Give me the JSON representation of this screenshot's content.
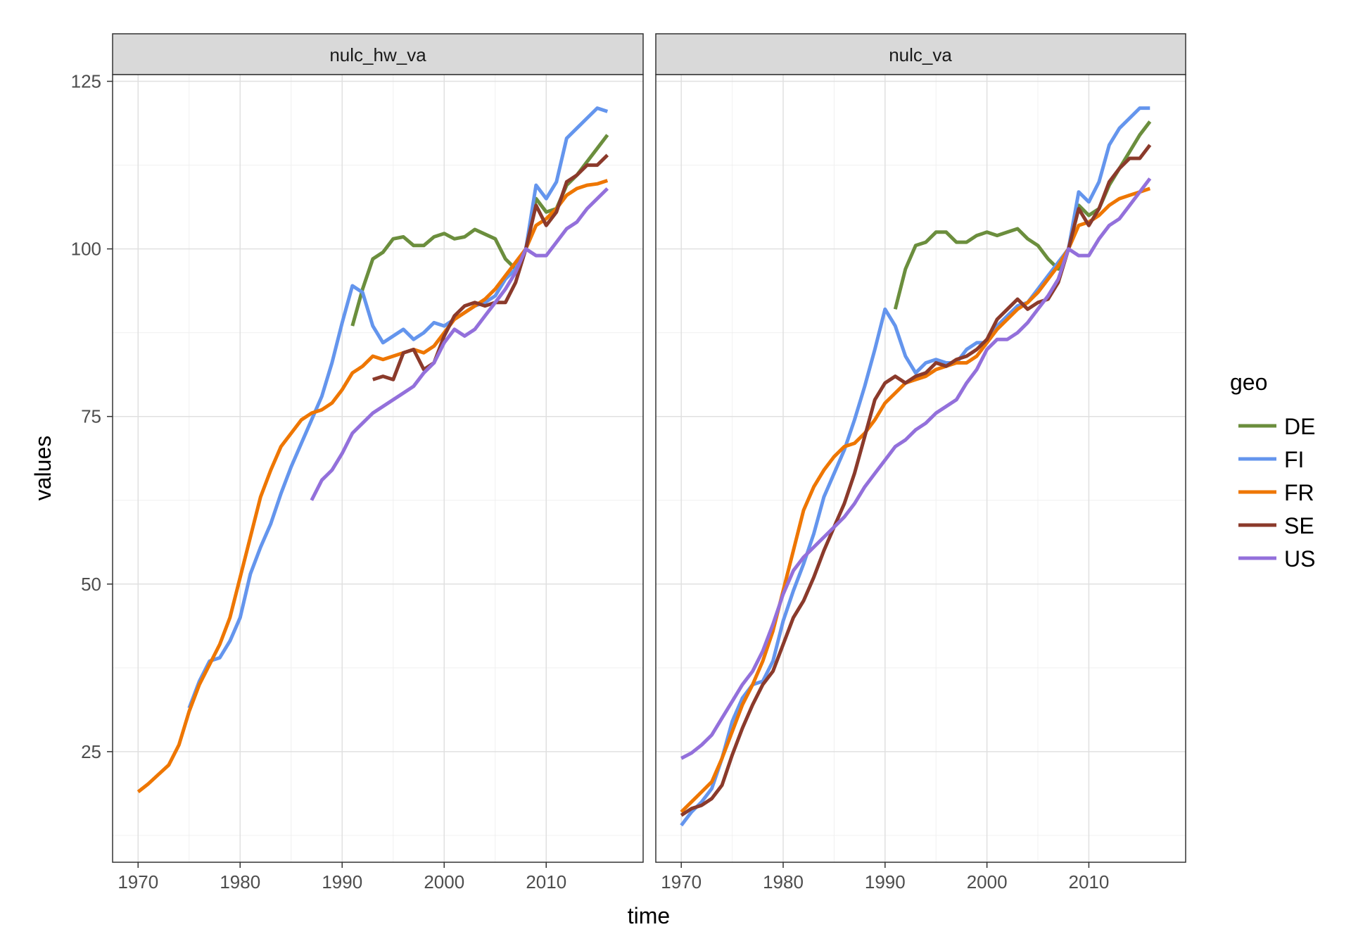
{
  "chart_data": {
    "type": "line",
    "xlabel": "time",
    "ylabel": "values",
    "xlim": [
      1967.5,
      2019.5
    ],
    "ylim": [
      8.5,
      126
    ],
    "xticks": [
      1970,
      1980,
      1990,
      2000,
      2010
    ],
    "yticks": [
      25,
      50,
      75,
      100,
      125
    ],
    "grid": true,
    "legend": {
      "title": "geo",
      "position": "right"
    },
    "colors": {
      "DE": "#6b8e3d",
      "FI": "#6495ed",
      "FR": "#ee7600",
      "SE": "#8b3a2b",
      "US": "#9370db"
    },
    "series_names": [
      "DE",
      "FI",
      "FR",
      "SE",
      "US"
    ],
    "panels": [
      {
        "label": "nulc_hw_va",
        "series": [
          {
            "name": "DE",
            "x": [
              1991,
              1992,
              1993,
              1994,
              1995,
              1996,
              1997,
              1998,
              1999,
              2000,
              2001,
              2002,
              2003,
              2004,
              2005,
              2006,
              2007,
              2008,
              2009,
              2010,
              2011,
              2012,
              2013,
              2014,
              2015,
              2016
            ],
            "values": [
              88.5,
              94,
              98.5,
              99.5,
              101.5,
              101.8,
              100.5,
              100.5,
              101.8,
              102.3,
              101.5,
              101.8,
              102.9,
              102.2,
              101.5,
              98.5,
              97,
              100,
              107.5,
              105.5,
              106,
              109.5,
              111,
              113,
              115,
              117
            ]
          },
          {
            "name": "FI",
            "x": [
              1975,
              1976,
              1977,
              1978,
              1979,
              1980,
              1981,
              1982,
              1983,
              1984,
              1985,
              1986,
              1987,
              1988,
              1989,
              1990,
              1991,
              1992,
              1993,
              1994,
              1995,
              1996,
              1997,
              1998,
              1999,
              2000,
              2001,
              2002,
              2003,
              2004,
              2005,
              2006,
              2007,
              2008,
              2009,
              2010,
              2011,
              2012,
              2013,
              2014,
              2015,
              2016
            ],
            "values": [
              31.5,
              35.5,
              38.5,
              39,
              41.5,
              45,
              51.5,
              55.5,
              59,
              63.5,
              67.5,
              71,
              74.5,
              78,
              83,
              89,
              94.5,
              93.5,
              88.5,
              86,
              87,
              88,
              86.5,
              87.5,
              89,
              88.5,
              89.5,
              90.5,
              91.5,
              92,
              93,
              95.5,
              97,
              100,
              109.5,
              107.5,
              110,
              116.5,
              118,
              119.5,
              121,
              120.5
            ]
          },
          {
            "name": "FR",
            "x": [
              1970,
              1971,
              1972,
              1973,
              1974,
              1975,
              1976,
              1977,
              1978,
              1979,
              1980,
              1981,
              1982,
              1983,
              1984,
              1985,
              1986,
              1987,
              1988,
              1989,
              1990,
              1991,
              1992,
              1993,
              1994,
              1995,
              1996,
              1997,
              1998,
              1999,
              2000,
              2001,
              2002,
              2003,
              2004,
              2005,
              2006,
              2007,
              2008,
              2009,
              2010,
              2011,
              2012,
              2013,
              2014,
              2015,
              2016
            ],
            "values": [
              19,
              20.2,
              21.6,
              23,
              26,
              31,
              35,
              38,
              41,
              45,
              51,
              57,
              63,
              67,
              70.5,
              72.5,
              74.5,
              75.5,
              76,
              77,
              79,
              81.5,
              82.5,
              84,
              83.5,
              84,
              84.5,
              85,
              84.5,
              85.5,
              87.5,
              89.5,
              90.5,
              91.5,
              92.5,
              94,
              96,
              98,
              100,
              103.5,
              104.5,
              106,
              108,
              109,
              109.5,
              109.7,
              110.2
            ]
          },
          {
            "name": "SE",
            "x": [
              1993,
              1994,
              1995,
              1996,
              1997,
              1998,
              1999,
              2000,
              2001,
              2002,
              2003,
              2004,
              2005,
              2006,
              2007,
              2008,
              2009,
              2010,
              2011,
              2012,
              2013,
              2014,
              2015,
              2016
            ],
            "values": [
              80.5,
              81,
              80.5,
              84.5,
              85,
              82,
              83,
              87,
              90,
              91.5,
              92,
              91.5,
              92,
              92,
              95,
              100,
              106.5,
              103.5,
              105.5,
              110,
              111,
              112.5,
              112.5,
              114
            ]
          },
          {
            "name": "US",
            "x": [
              1987,
              1988,
              1989,
              1990,
              1991,
              1992,
              1993,
              1994,
              1995,
              1996,
              1997,
              1998,
              1999,
              2000,
              2001,
              2002,
              2003,
              2004,
              2005,
              2006,
              2007,
              2008,
              2009,
              2010,
              2011,
              2012,
              2013,
              2014,
              2015,
              2016
            ],
            "values": [
              62.5,
              65.5,
              67,
              69.5,
              72.5,
              74,
              75.5,
              76.5,
              77.5,
              78.5,
              79.5,
              81.5,
              83,
              86,
              88,
              87,
              88,
              90,
              92,
              94,
              96.5,
              100,
              99,
              99,
              101,
              103,
              104,
              106,
              107.5,
              109
            ]
          }
        ]
      },
      {
        "label": "nulc_va",
        "series": [
          {
            "name": "DE",
            "x": [
              1991,
              1992,
              1993,
              1994,
              1995,
              1996,
              1997,
              1998,
              1999,
              2000,
              2001,
              2002,
              2003,
              2004,
              2005,
              2006,
              2007,
              2008,
              2009,
              2010,
              2011,
              2012,
              2013,
              2014,
              2015,
              2016
            ],
            "values": [
              91,
              97,
              100.5,
              101,
              102.5,
              102.5,
              101,
              101,
              102,
              102.5,
              102,
              102.5,
              103,
              101.5,
              100.5,
              98.5,
              97,
              100,
              106.5,
              105,
              106,
              109.5,
              112,
              114.5,
              117,
              119
            ]
          },
          {
            "name": "FI",
            "x": [
              1970,
              1971,
              1972,
              1973,
              1974,
              1975,
              1976,
              1977,
              1978,
              1979,
              1980,
              1981,
              1982,
              1983,
              1984,
              1985,
              1986,
              1987,
              1988,
              1989,
              1990,
              1991,
              1992,
              1993,
              1994,
              1995,
              1996,
              1997,
              1998,
              1999,
              2000,
              2001,
              2002,
              2003,
              2004,
              2005,
              2006,
              2007,
              2008,
              2009,
              2010,
              2011,
              2012,
              2013,
              2014,
              2015,
              2016
            ],
            "values": [
              14,
              16,
              17.5,
              19.5,
              24,
              29.5,
              33,
              35,
              35.5,
              38.5,
              44.5,
              49,
              53,
              57.5,
              63,
              66.5,
              70,
              74.5,
              79.5,
              85,
              91,
              88.5,
              84,
              81.5,
              83,
              83.5,
              83,
              83,
              85,
              86,
              86,
              88.5,
              90,
              91.5,
              92,
              94,
              96,
              98,
              100,
              108.5,
              107,
              110,
              115.5,
              118,
              119.5,
              121,
              121
            ]
          },
          {
            "name": "FR",
            "x": [
              1970,
              1971,
              1972,
              1973,
              1974,
              1975,
              1976,
              1977,
              1978,
              1979,
              1980,
              1981,
              1982,
              1983,
              1984,
              1985,
              1986,
              1987,
              1988,
              1989,
              1990,
              1991,
              1992,
              1993,
              1994,
              1995,
              1996,
              1997,
              1998,
              1999,
              2000,
              2001,
              2002,
              2003,
              2004,
              2005,
              2006,
              2007,
              2008,
              2009,
              2010,
              2011,
              2012,
              2013,
              2014,
              2015,
              2016
            ],
            "values": [
              16,
              17.5,
              19,
              20.5,
              24,
              28,
              32,
              35,
              38.5,
              43,
              49,
              55,
              61,
              64.5,
              67,
              69,
              70.5,
              71,
              72.5,
              74.5,
              77,
              78.5,
              80,
              80.5,
              81,
              82,
              82.5,
              83,
              83,
              84,
              86,
              88,
              89.5,
              91,
              92,
              93.5,
              95.5,
              97.5,
              100,
              103.5,
              104,
              105,
              106.5,
              107.5,
              108,
              108.5,
              109
            ]
          },
          {
            "name": "SE",
            "x": [
              1970,
              1971,
              1972,
              1973,
              1974,
              1975,
              1976,
              1977,
              1978,
              1979,
              1980,
              1981,
              1982,
              1983,
              1984,
              1985,
              1986,
              1987,
              1988,
              1989,
              1990,
              1991,
              1992,
              1993,
              1994,
              1995,
              1996,
              1997,
              1998,
              1999,
              2000,
              2001,
              2002,
              2003,
              2004,
              2005,
              2006,
              2007,
              2008,
              2009,
              2010,
              2011,
              2012,
              2013,
              2014,
              2015,
              2016
            ],
            "values": [
              15.5,
              16.5,
              17,
              18,
              20,
              24.5,
              28.5,
              32,
              35,
              37,
              41,
              45,
              47.5,
              51,
              55,
              58.5,
              62,
              66.5,
              72,
              77.5,
              80,
              81,
              80,
              81,
              81.5,
              83,
              82.5,
              83.5,
              84,
              85,
              86.5,
              89.5,
              91,
              92.5,
              91,
              92,
              92.5,
              95,
              100,
              106,
              103.5,
              106,
              110,
              112,
              113.5,
              113.5,
              115.5
            ]
          },
          {
            "name": "US",
            "x": [
              1970,
              1971,
              1972,
              1973,
              1974,
              1975,
              1976,
              1977,
              1978,
              1979,
              1980,
              1981,
              1982,
              1983,
              1984,
              1985,
              1986,
              1987,
              1988,
              1989,
              1990,
              1991,
              1992,
              1993,
              1994,
              1995,
              1996,
              1997,
              1998,
              1999,
              2000,
              2001,
              2002,
              2003,
              2004,
              2005,
              2006,
              2007,
              2008,
              2009,
              2010,
              2011,
              2012,
              2013,
              2014,
              2015,
              2016
            ],
            "values": [
              24,
              24.8,
              26,
              27.5,
              30,
              32.5,
              35,
              37,
              40,
              44,
              48.5,
              52,
              54,
              55.5,
              57,
              58.5,
              60,
              62,
              64.5,
              66.5,
              68.5,
              70.5,
              71.5,
              73,
              74,
              75.5,
              76.5,
              77.5,
              80,
              82,
              85,
              86.5,
              86.5,
              87.5,
              89,
              91,
              93,
              95.5,
              100,
              99,
              99,
              101.5,
              103.5,
              104.5,
              106.5,
              108.5,
              110.5
            ]
          }
        ]
      }
    ]
  }
}
